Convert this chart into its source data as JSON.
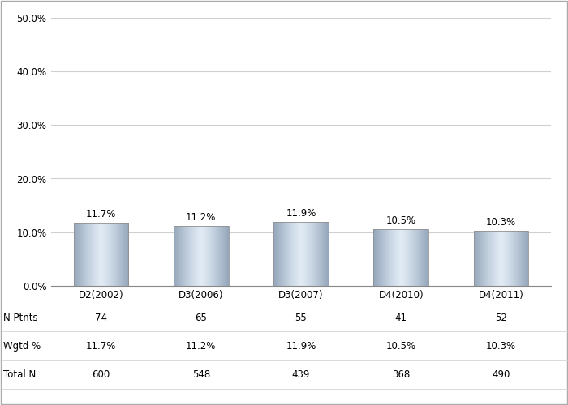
{
  "categories": [
    "D2(2002)",
    "D3(2006)",
    "D3(2007)",
    "D4(2010)",
    "D4(2011)"
  ],
  "values": [
    11.7,
    11.2,
    11.9,
    10.5,
    10.3
  ],
  "labels": [
    "11.7%",
    "11.2%",
    "11.9%",
    "10.5%",
    "10.3%"
  ],
  "n_ptnts": [
    74,
    65,
    55,
    41,
    52
  ],
  "wgtd_pct": [
    "11.7%",
    "11.2%",
    "11.9%",
    "10.5%",
    "10.3%"
  ],
  "total_n": [
    600,
    548,
    439,
    368,
    490
  ],
  "ylim": [
    0,
    50
  ],
  "yticks": [
    0,
    10,
    20,
    30,
    40,
    50
  ],
  "ytick_labels": [
    "0.0%",
    "10.0%",
    "20.0%",
    "30.0%",
    "40.0%",
    "50.0%"
  ],
  "background_color": "#ffffff",
  "plot_bg_color": "#ffffff",
  "grid_color": "#d0d0d0",
  "label_fontsize": 8.5,
  "tick_fontsize": 8.5,
  "table_fontsize": 8.5,
  "bar_width": 0.55
}
